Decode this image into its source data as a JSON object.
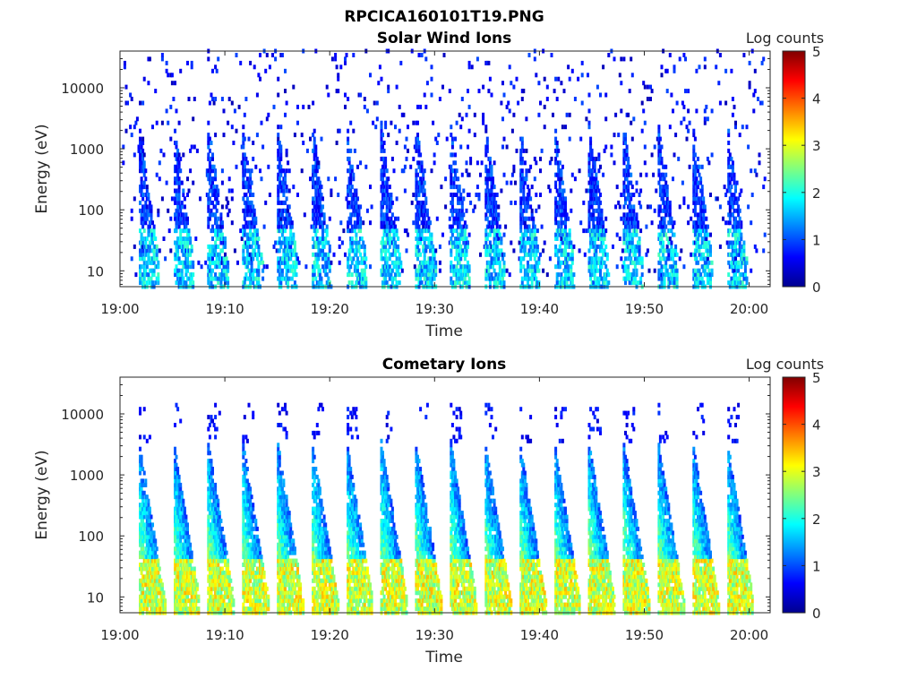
{
  "figure": {
    "filename": "RPCICA160101T19.PNG"
  },
  "colormap": "jet",
  "chart_data": [
    {
      "type": "heatmap",
      "title": "Solar Wind Ions",
      "xlabel": "Time",
      "ylabel": "Energy (eV)",
      "x_range": [
        "19:00",
        "20:02"
      ],
      "x_ticks": [
        "19:00",
        "19:10",
        "19:20",
        "19:30",
        "19:40",
        "19:50",
        "20:00"
      ],
      "y_scale": "log",
      "y_range": [
        5.5,
        40000
      ],
      "y_ticks": [
        "10",
        "100",
        "1000",
        "10000"
      ],
      "colorbar": {
        "label": "Log counts",
        "range": [
          0,
          5
        ],
        "ticks": [
          "0",
          "1",
          "2",
          "3",
          "4",
          "5"
        ]
      },
      "sweep_period_min": 3.3,
      "features": "sparse low-count noise (Log counts ~0-0.5) spread over 10 eV - 30 keV; periodic bursts below ~1 keV peaking near 20-40 eV at Log counts ~1.5-2",
      "burst_times_min": [
        2.0,
        5.3,
        8.6,
        11.9,
        15.2,
        18.5,
        21.8,
        25.1,
        28.4,
        31.7,
        35.0,
        38.3,
        41.6,
        44.9,
        48.2,
        51.5,
        54.8,
        58.1
      ]
    },
    {
      "type": "heatmap",
      "title": "Cometary Ions",
      "xlabel": "Time",
      "ylabel": "Energy (eV)",
      "x_range": [
        "19:00",
        "20:02"
      ],
      "x_ticks": [
        "19:00",
        "19:10",
        "19:20",
        "19:30",
        "19:40",
        "19:50",
        "20:00"
      ],
      "y_scale": "log",
      "y_range": [
        5.5,
        40000
      ],
      "y_ticks": [
        "10",
        "100",
        "1000",
        "10000"
      ],
      "colorbar": {
        "label": "Log counts",
        "range": [
          0,
          5
        ],
        "ticks": [
          "0",
          "1",
          "2",
          "3",
          "4",
          "5"
        ]
      },
      "sweep_period_min": 3.3,
      "features": "periodic energy sweeps from ~1.5 keV down to ~10 eV; intense band 10-40 eV with Log counts ~2.5-3.5; sparse counts up to ~10 keV",
      "burst_times_min": [
        2.0,
        5.3,
        8.6,
        11.9,
        15.2,
        18.5,
        21.8,
        25.1,
        28.4,
        31.7,
        35.0,
        38.3,
        41.6,
        44.9,
        48.2,
        51.5,
        54.8,
        58.1
      ]
    }
  ]
}
